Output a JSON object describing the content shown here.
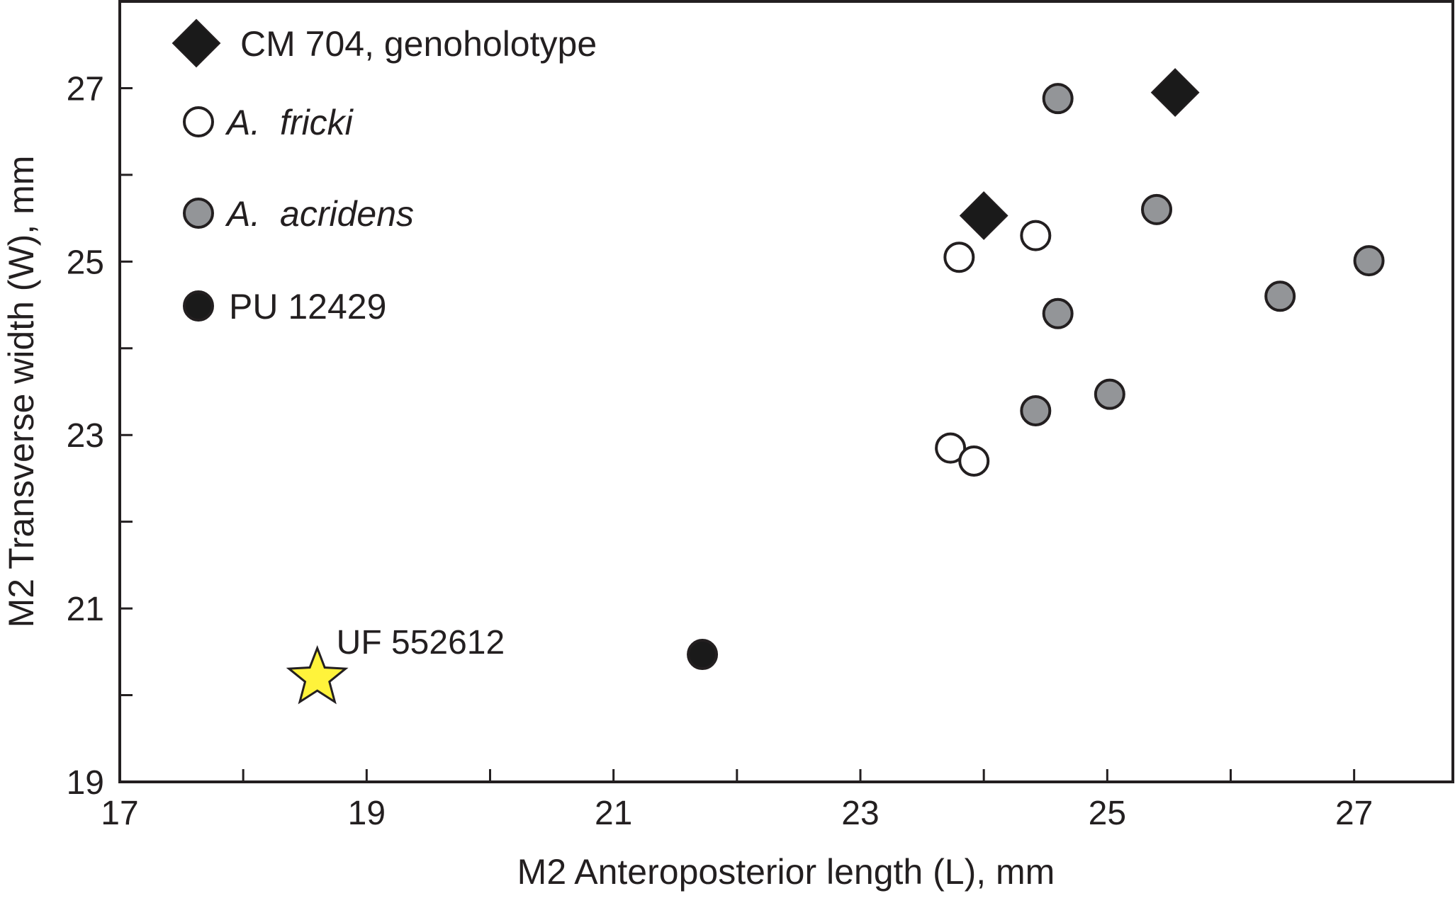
{
  "chart_data": {
    "type": "scatter",
    "xlabel": "M2 Anteroposterior length (L), mm",
    "ylabel": "M2 Transverse width (W), mm",
    "xlim": [
      17,
      27.8
    ],
    "ylim": [
      19,
      28
    ],
    "x_ticks": [
      17,
      19,
      21,
      23,
      25,
      27
    ],
    "x_minor_ticks": [
      18,
      20,
      22,
      24,
      26
    ],
    "y_ticks": [
      19,
      21,
      23,
      25,
      27
    ],
    "y_minor_ticks": [
      20,
      22,
      24,
      26
    ],
    "grid": false,
    "legend_position": "top-left",
    "series": [
      {
        "name": "CM 704, genoholotype",
        "marker": "diamond",
        "fill": "#1a1a1a",
        "points": [
          {
            "x": 24.0,
            "y": 25.53
          },
          {
            "x": 25.55,
            "y": 26.95
          }
        ]
      },
      {
        "name": "A.  fricki",
        "marker": "circle",
        "fill": "#ffffff",
        "points": [
          {
            "x": 23.8,
            "y": 25.05
          },
          {
            "x": 24.42,
            "y": 25.3
          },
          {
            "x": 23.73,
            "y": 22.85
          },
          {
            "x": 23.92,
            "y": 22.7
          }
        ]
      },
      {
        "name": "A.  acridens",
        "marker": "circle",
        "fill": "#939598",
        "points": [
          {
            "x": 24.6,
            "y": 26.88
          },
          {
            "x": 25.4,
            "y": 25.6
          },
          {
            "x": 27.12,
            "y": 25.01
          },
          {
            "x": 26.4,
            "y": 24.6
          },
          {
            "x": 24.6,
            "y": 24.4
          },
          {
            "x": 25.02,
            "y": 23.47
          },
          {
            "x": 24.42,
            "y": 23.28
          }
        ]
      },
      {
        "name": "PU 12429",
        "marker": "circle",
        "fill": "#1a1a1a",
        "points": [
          {
            "x": 21.72,
            "y": 20.47
          }
        ]
      },
      {
        "name": "UF 552612",
        "marker": "star",
        "fill": "#fff33b",
        "points": [
          {
            "x": 18.6,
            "y": 20.2
          }
        ]
      }
    ],
    "annotations": [
      {
        "text": "UF 552612",
        "x": 18.6,
        "y": 20.2
      }
    ]
  }
}
